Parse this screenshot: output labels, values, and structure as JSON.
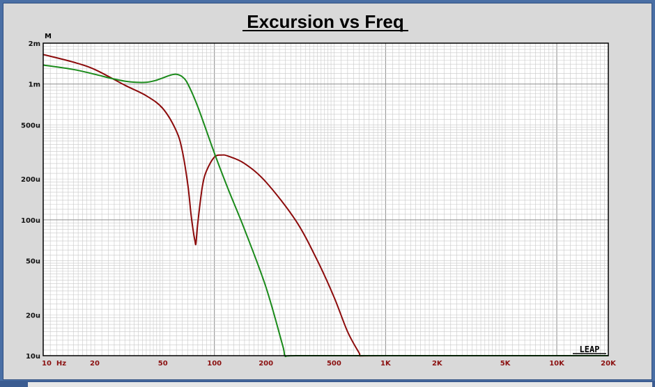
{
  "chart_data": {
    "type": "line",
    "title": "Excursion vs Freq",
    "xlabel": "",
    "ylabel": "",
    "y_unit": "M",
    "x_scale": "log",
    "y_scale": "log",
    "xlim": [
      10,
      20000
    ],
    "ylim": [
      1e-05,
      0.002
    ],
    "grid": true,
    "x_ticks": [
      {
        "value": 10,
        "label": "10  Hz"
      },
      {
        "value": 20,
        "label": "20"
      },
      {
        "value": 50,
        "label": "50"
      },
      {
        "value": 100,
        "label": "100"
      },
      {
        "value": 200,
        "label": "200"
      },
      {
        "value": 500,
        "label": "500"
      },
      {
        "value": 1000,
        "label": "1K"
      },
      {
        "value": 2000,
        "label": "2K"
      },
      {
        "value": 5000,
        "label": "5K"
      },
      {
        "value": 10000,
        "label": "10K"
      },
      {
        "value": 20000,
        "label": "20K"
      }
    ],
    "y_ticks": [
      {
        "value": 0.002,
        "label": "2m"
      },
      {
        "value": 0.001,
        "label": "1m"
      },
      {
        "value": 0.0005,
        "label": "500u"
      },
      {
        "value": 0.0002,
        "label": "200u"
      },
      {
        "value": 0.0001,
        "label": "100u"
      },
      {
        "value": 5e-05,
        "label": "50u"
      },
      {
        "value": 2e-05,
        "label": "20u"
      },
      {
        "value": 1e-05,
        "label": "10u"
      }
    ],
    "series": [
      {
        "color": "#8b0a0a",
        "x": [
          10,
          15,
          20,
          30,
          40,
          50,
          60,
          65,
          70,
          73,
          75,
          77,
          78,
          80,
          85,
          90,
          100,
          110,
          120,
          150,
          200,
          300,
          400,
          500,
          600,
          700,
          720,
          1000,
          20000
        ],
        "y": [
          0.00165,
          0.00145,
          0.00128,
          0.00098,
          0.00082,
          0.00066,
          0.00045,
          0.00032,
          0.00018,
          0.00011,
          8.5e-05,
          7e-05,
          6.7e-05,
          9.5e-05,
          0.000175,
          0.00023,
          0.00029,
          0.0003,
          0.000295,
          0.00026,
          0.00019,
          9.8e-05,
          5e-05,
          2.7e-05,
          1.5e-05,
          1.05e-05,
          1e-05,
          1e-05,
          1e-05
        ]
      },
      {
        "color": "#1a8a1a",
        "x": [
          10,
          15,
          20,
          25,
          30,
          35,
          40,
          45,
          50,
          55,
          60,
          65,
          70,
          80,
          100,
          120,
          150,
          200,
          250,
          260,
          300,
          1000,
          20000
        ],
        "y": [
          0.00138,
          0.00128,
          0.00118,
          0.0011,
          0.00105,
          0.00103,
          0.00103,
          0.00106,
          0.00111,
          0.00116,
          0.00118,
          0.00113,
          0.001,
          0.00068,
          0.00031,
          0.00017,
          8.5e-05,
          3.2e-05,
          1.2e-05,
          1e-05,
          1e-05,
          1e-05,
          1e-05
        ]
      }
    ]
  },
  "branding": {
    "logo_text": "LEAP"
  }
}
